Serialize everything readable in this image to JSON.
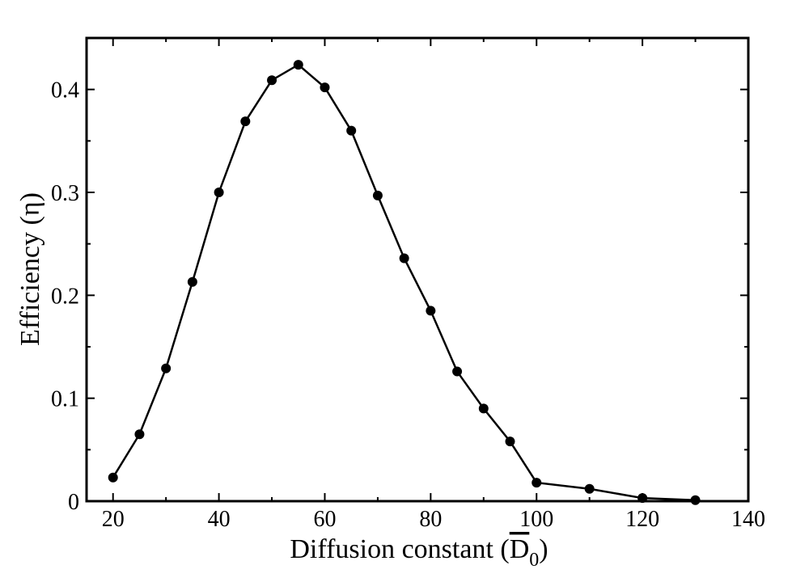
{
  "chart_data": {
    "type": "line",
    "title": "",
    "xlabel_prefix": "Diffusion constant (",
    "xlabel_symbol": "D",
    "xlabel_subscript": "0",
    "xlabel_suffix": ")",
    "ylabel": "Efficiency (η)",
    "xlim": [
      15,
      140
    ],
    "ylim": [
      0,
      0.45
    ],
    "x_ticks": [
      20,
      40,
      60,
      80,
      100,
      120,
      140
    ],
    "y_ticks": [
      0,
      0.1,
      0.2,
      0.3,
      0.4
    ],
    "x_tick_labels": [
      "20",
      "40",
      "60",
      "80",
      "100",
      "120",
      "140"
    ],
    "y_tick_labels": [
      "0",
      "0.1",
      "0.2",
      "0.3",
      "0.4"
    ],
    "grid": false,
    "legend": "none",
    "series": [
      {
        "color": "#000000",
        "marker": "circle",
        "x": [
          20,
          25,
          30,
          35,
          40,
          45,
          50,
          55,
          60,
          65,
          70,
          75,
          80,
          85,
          90,
          95,
          100,
          110,
          120,
          130
        ],
        "y": [
          0.023,
          0.065,
          0.129,
          0.213,
          0.3,
          0.369,
          0.409,
          0.424,
          0.402,
          0.36,
          0.297,
          0.236,
          0.185,
          0.126,
          0.09,
          0.058,
          0.018,
          0.012,
          0.003,
          0.001
        ]
      }
    ]
  }
}
